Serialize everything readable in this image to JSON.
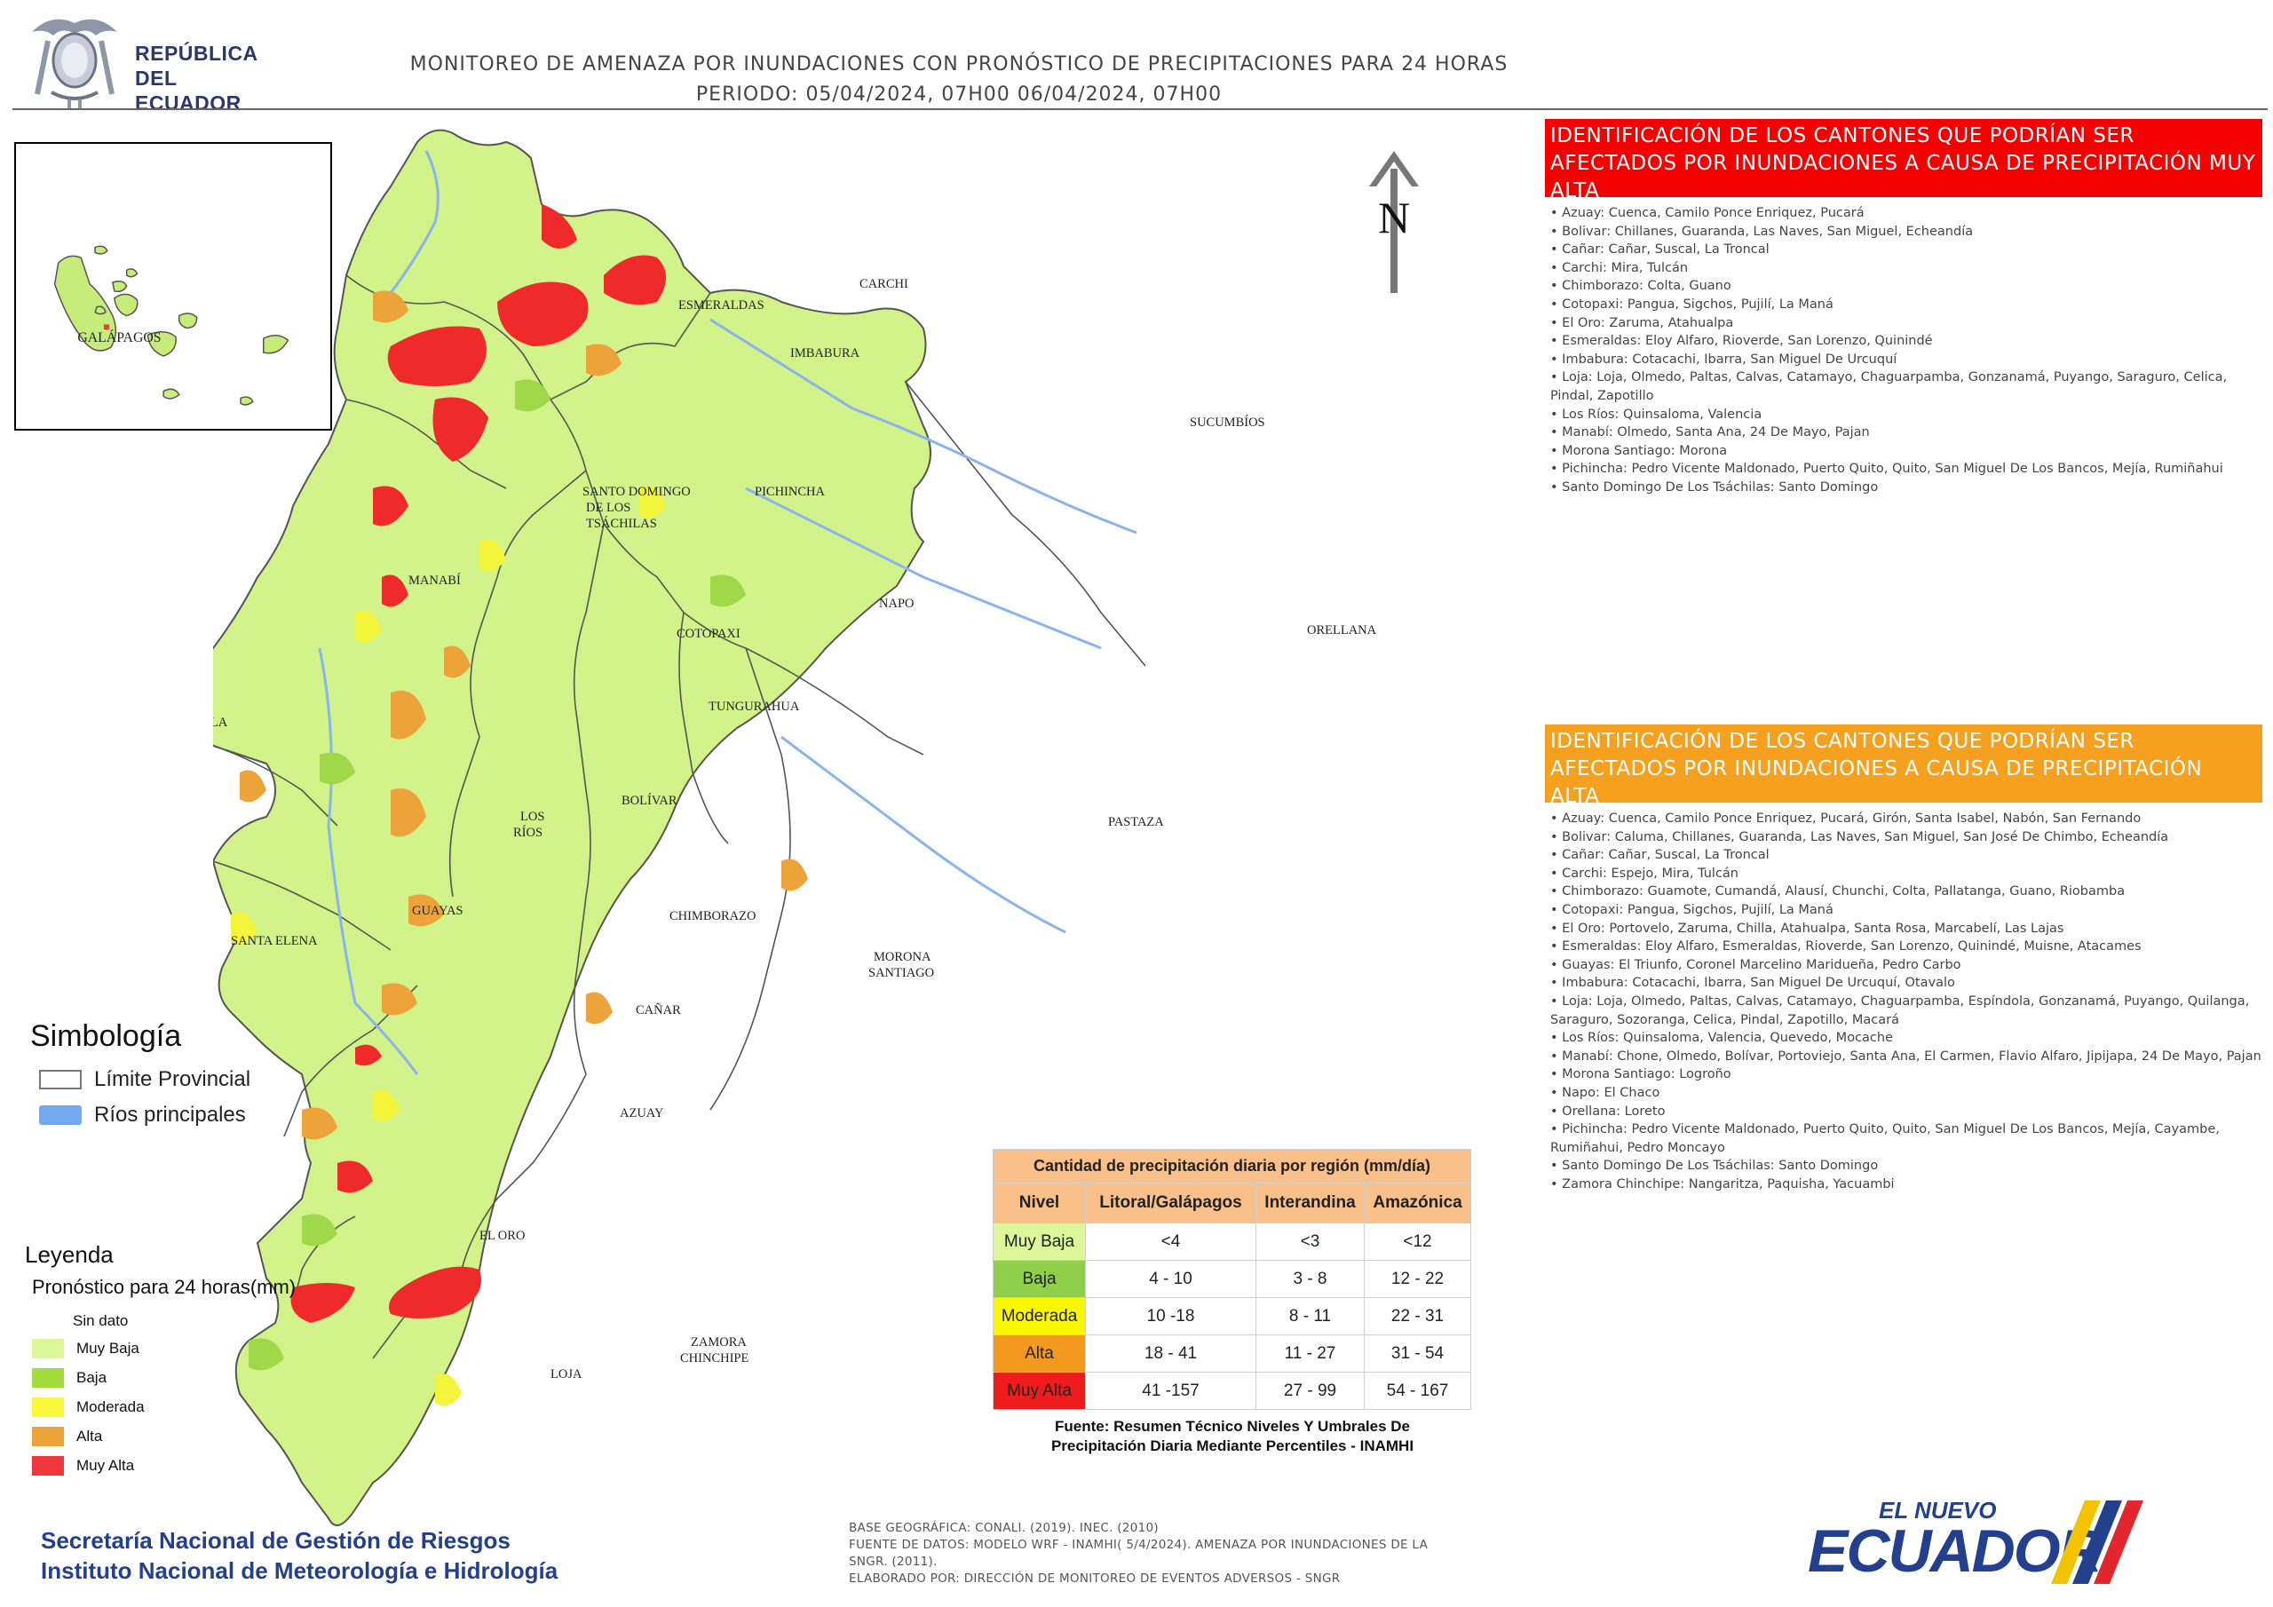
{
  "header": {
    "logo_line1": "REPÚBLICA",
    "logo_line2": "DEL ECUADOR",
    "title_line1": "MONITOREO DE AMENAZA POR INUNDACIONES  CON PRONÓSTICO DE  PRECIPITACIONES PARA 24 HORAS",
    "title_line2": "PERIODO: 05/04/2024, 07H00 06/04/2024, 07H00"
  },
  "inset": {
    "label": "GALÁPAGOS"
  },
  "map": {
    "north_label": "N",
    "province_labels": [
      "CARCHI",
      "ESMERALDAS",
      "IMBABURA",
      "SUCUMBÍOS",
      "PICHINCHA",
      "SANTO DOMINGO",
      "DE LOS",
      "TSÁCHILAS",
      "MANABÍ",
      "NAPO",
      "COTOPAXI",
      "ORELLANA",
      "ISLA",
      "TUNGURAHUA",
      "BOLÍVAR",
      "LOS",
      "RÍOS",
      "PASTAZA",
      "GUAYAS",
      "CHIMBORAZO",
      "SANTA ELENA",
      "MORONA",
      "SANTIAGO",
      "CAÑAR",
      "AZUAY",
      "EL ORO",
      "ZAMORA",
      "CHINCHIPE",
      "LOJA"
    ]
  },
  "panel_muy_alta": {
    "heading": "IDENTIFICACIÓN DE LOS CANTONES QUE PODRÍAN SER AFECTADOS POR INUNDACIONES  A CAUSA DE PRECIPITACIÓN MUY ALTA",
    "items": [
      "Azuay: Cuenca, Camilo Ponce Enriquez, Pucará",
      "Bolivar: Chillanes, Guaranda, Las Naves, San Miguel, Echeandía",
      "Cañar: Cañar, Suscal, La Troncal",
      "Carchi: Mira, Tulcán",
      "Chimborazo: Colta, Guano",
      "Cotopaxi: Pangua, Sigchos, Pujilí, La Maná",
      "El Oro: Zaruma, Atahualpa",
      "Esmeraldas: Eloy Alfaro, Rioverde, San Lorenzo, Quinindé",
      "Imbabura: Cotacachi, Ibarra, San Miguel De Urcuquí",
      "Loja: Loja, Olmedo, Paltas, Calvas, Catamayo, Chaguarpamba, Gonzanamá, Puyango, Saraguro, Celica, Pindal, Zapotillo",
      "Los Ríos: Quinsaloma, Valencia",
      "Manabí: Olmedo, Santa Ana, 24 De Mayo, Pajan",
      "Morona Santiago: Morona",
      "Pichincha: Pedro Vicente Maldonado, Puerto Quito, Quito, San Miguel De Los Bancos, Mejía, Rumiñahui",
      "Santo Domingo De Los Tsáchilas: Santo Domingo"
    ]
  },
  "panel_alta": {
    "heading": "IDENTIFICACIÓN DE LOS CANTONES QUE  PODRÍAN SER AFECTADOS POR INUNDACIONES  A CAUSA DE PRECIPITACIÓN  ALTA",
    "items": [
      "Azuay: Cuenca, Camilo Ponce Enriquez, Pucará, Girón, Santa Isabel, Nabón, San Fernando",
      "Bolivar: Caluma, Chillanes, Guaranda, Las Naves, San Miguel, San José De Chimbo, Echeandía",
      "Cañar: Cañar, Suscal, La Troncal",
      "Carchi: Espejo, Mira, Tulcán",
      "Chimborazo: Guamote, Cumandá, Alausí, Chunchi, Colta, Pallatanga, Guano, Riobamba",
      "Cotopaxi: Pangua, Sigchos, Pujilí, La Maná",
      "El Oro: Portovelo, Zaruma, Chilla, Atahualpa, Santa Rosa, Marcabelí, Las Lajas",
      "Esmeraldas: Eloy Alfaro, Esmeraldas, Rioverde, San Lorenzo, Quinindé, Muisne, Atacames",
      "Guayas: El Triunfo, Coronel Marcelino Maridueña, Pedro Carbo",
      "Imbabura: Cotacachi, Ibarra, San Miguel De Urcuquí, Otavalo",
      "Loja: Loja, Olmedo, Paltas, Calvas, Catamayo, Chaguarpamba, Espíndola, Gonzanamá, Puyango, Quilanga, Saraguro, Sozoranga, Celica, Pindal, Zapotillo, Macará",
      "Los Ríos: Quinsaloma, Valencia, Quevedo, Mocache",
      "Manabí: Chone, Olmedo, Bolívar, Portoviejo, Santa Ana, El Carmen, Flavio Alfaro, Jipijapa, 24 De Mayo, Pajan",
      "Morona Santiago: Logroño",
      "Napo: El Chaco",
      "Orellana: Loreto",
      "Pichincha: Pedro Vicente Maldonado, Puerto Quito, Quito, San Miguel De Los Bancos, Mejía, Cayambe, Rumiñahui, Pedro Moncayo",
      "Santo Domingo De Los Tsáchilas: Santo Domingo",
      "Zamora Chinchipe: Nangaritza, Paquisha, Yacuambi"
    ]
  },
  "simbologia": {
    "title": "Simbología",
    "limite": "Límite Provincial",
    "rios": "Ríos principales"
  },
  "leyenda": {
    "title": "Leyenda",
    "subtitle": "Pronóstico para 24 horas(mm)",
    "sin_dato": "Sin dato",
    "items": [
      {
        "label": "Muy Baja",
        "color": "#dcf79a"
      },
      {
        "label": "Baja",
        "color": "#a4dc3c"
      },
      {
        "label": "Moderada",
        "color": "#fbf73c"
      },
      {
        "label": "Alta",
        "color": "#eca33a"
      },
      {
        "label": "Muy Alta",
        "color": "#f0383c"
      }
    ]
  },
  "table": {
    "caption": "Cantidad de precipitación diaria por región (mm/día)",
    "headers": [
      "Nivel",
      "Litoral/Galápagos",
      "Interandina",
      "Amazónica"
    ],
    "rows": [
      {
        "nivel": "Muy Baja",
        "litoral": "<4",
        "interandina": "<3",
        "amazonica": "<12",
        "color": "#dcf79a"
      },
      {
        "nivel": "Baja",
        "litoral": "4 - 10",
        "interandina": "3 - 8",
        "amazonica": "12 - 22",
        "color": "#8fcf4a"
      },
      {
        "nivel": "Moderada",
        "litoral": "10 -18",
        "interandina": "8 - 11",
        "amazonica": "22 - 31",
        "color": "#fbf700"
      },
      {
        "nivel": "Alta",
        "litoral": "18 - 41",
        "interandina": "11 - 27",
        "amazonica": "31 - 54",
        "color": "#f39a1e"
      },
      {
        "nivel": "Muy Alta",
        "litoral": "41 -157",
        "interandina": "27 - 99",
        "amazonica": "54 - 167",
        "color": "#ee1c1c"
      }
    ],
    "source_line1": "Fuente: Resumen Técnico Niveles Y Umbrales De",
    "source_line2": "Precipitación Diaria Mediante Percentiles - INAMHI"
  },
  "footer": {
    "org_line1": "Secretaría Nacional de Gestión de Riesgos",
    "org_line2": "Instituto Nacional de Meteorología e Hidrología",
    "credit_line1": "BASE GEOGRÁFICA: CONALI. (2019). INEC. (2010)",
    "credit_line2": "FUENTE DE DATOS: MODELO WRF - INAMHI( 5/4/2024).  AMENAZA POR INUNDACIONES DE LA",
    "credit_line3": "SNGR. (2011).",
    "credit_line4": "ELABORADO POR: DIRECCIÓN DE MONITOREO DE EVENTOS ADVERSOS - SNGR",
    "brand_small": "EL NUEVO",
    "brand_big": "ECUADOR"
  }
}
